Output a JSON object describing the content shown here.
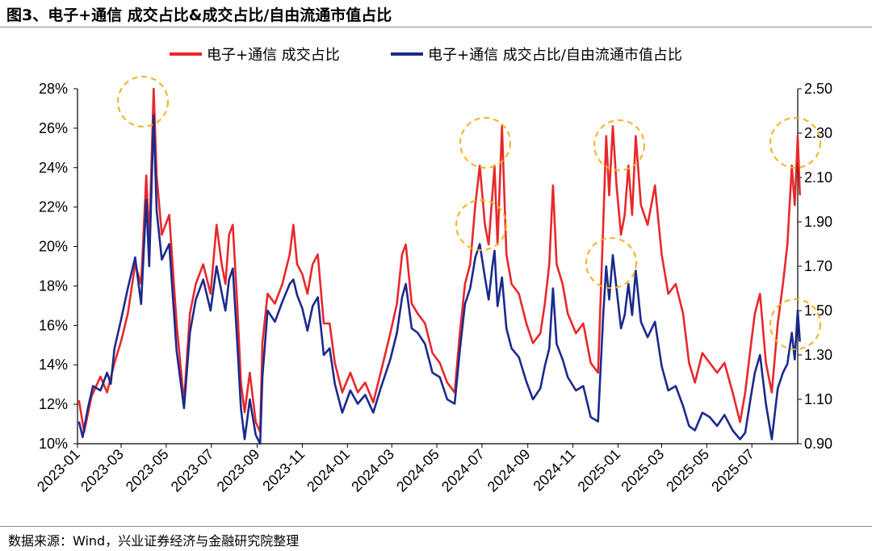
{
  "figure_title": "图3、电子+通信 成交占比&成交占比/自由流通市值占比",
  "source_note": "数据来源：Wind，兴业证券经济与金融研究院整理",
  "colors": {
    "red": "#e8282b",
    "blue": "#1b2a8c",
    "highlight": "#f5b21b",
    "axis": "#000000"
  },
  "chart_data": {
    "type": "line",
    "title": "",
    "xlabel": "",
    "ylabel_left": "",
    "ylabel_right": "",
    "x_ticks": [
      "2023-01",
      "2023-03",
      "2023-05",
      "2023-07",
      "2023-09",
      "2023-11",
      "2024-01",
      "2024-03",
      "2024-05",
      "2024-07",
      "2024-09",
      "2024-11",
      "2025-01",
      "2025-03",
      "2025-05",
      "2025-07"
    ],
    "x_range": [
      "2023-01",
      "2025-09"
    ],
    "y_left_ticks": [
      "10%",
      "12%",
      "14%",
      "16%",
      "18%",
      "20%",
      "22%",
      "24%",
      "26%",
      "28%"
    ],
    "y_left_range": [
      10,
      28
    ],
    "y_right_ticks": [
      "0.90",
      "1.10",
      "1.30",
      "1.50",
      "1.70",
      "1.90",
      "2.10",
      "2.30",
      "2.50"
    ],
    "y_right_range": [
      0.9,
      2.5
    ],
    "legend_position": "top",
    "grid": false,
    "series": [
      {
        "name": "电子+通信 成交占比",
        "axis": "left",
        "color": "#e8282b",
        "points": [
          [
            "2023-01-03",
            12.2
          ],
          [
            "2023-01-10",
            10.6
          ],
          [
            "2023-01-20",
            12.4
          ],
          [
            "2023-02-01",
            13.4
          ],
          [
            "2023-02-10",
            12.6
          ],
          [
            "2023-02-20",
            14.1
          ],
          [
            "2023-03-01",
            15.2
          ],
          [
            "2023-03-10",
            16.6
          ],
          [
            "2023-03-20",
            19.1
          ],
          [
            "2023-03-28",
            18.1
          ],
          [
            "2023-04-04",
            23.6
          ],
          [
            "2023-04-08",
            20.2
          ],
          [
            "2023-04-14",
            28.0
          ],
          [
            "2023-04-18",
            23.6
          ],
          [
            "2023-04-25",
            20.6
          ],
          [
            "2023-05-05",
            21.6
          ],
          [
            "2023-05-15",
            16.1
          ],
          [
            "2023-05-25",
            12.1
          ],
          [
            "2023-06-02",
            16.6
          ],
          [
            "2023-06-10",
            18.1
          ],
          [
            "2023-06-20",
            19.1
          ],
          [
            "2023-06-30",
            17.6
          ],
          [
            "2023-07-08",
            21.1
          ],
          [
            "2023-07-15",
            19.1
          ],
          [
            "2023-07-20",
            18.1
          ],
          [
            "2023-07-25",
            20.6
          ],
          [
            "2023-07-30",
            21.1
          ],
          [
            "2023-08-05",
            17.1
          ],
          [
            "2023-08-10",
            13.1
          ],
          [
            "2023-08-15",
            11.6
          ],
          [
            "2023-08-22",
            13.6
          ],
          [
            "2023-08-30",
            11.1
          ],
          [
            "2023-09-05",
            10.6
          ],
          [
            "2023-09-08",
            15.1
          ],
          [
            "2023-09-15",
            17.6
          ],
          [
            "2023-09-25",
            17.1
          ],
          [
            "2023-10-05",
            18.1
          ],
          [
            "2023-10-15",
            19.6
          ],
          [
            "2023-10-20",
            21.1
          ],
          [
            "2023-10-25",
            19.1
          ],
          [
            "2023-11-01",
            18.6
          ],
          [
            "2023-11-08",
            17.6
          ],
          [
            "2023-11-15",
            19.1
          ],
          [
            "2023-11-22",
            19.6
          ],
          [
            "2023-11-30",
            16.1
          ],
          [
            "2023-12-08",
            16.1
          ],
          [
            "2023-12-15",
            14.1
          ],
          [
            "2023-12-25",
            12.6
          ],
          [
            "2024-01-05",
            13.6
          ],
          [
            "2024-01-15",
            12.6
          ],
          [
            "2024-01-25",
            13.1
          ],
          [
            "2024-02-05",
            12.1
          ],
          [
            "2024-02-15",
            13.6
          ],
          [
            "2024-02-28",
            15.6
          ],
          [
            "2024-03-08",
            17.1
          ],
          [
            "2024-03-15",
            19.6
          ],
          [
            "2024-03-20",
            20.1
          ],
          [
            "2024-03-28",
            17.1
          ],
          [
            "2024-04-05",
            16.6
          ],
          [
            "2024-04-15",
            16.1
          ],
          [
            "2024-04-25",
            14.6
          ],
          [
            "2024-05-05",
            14.1
          ],
          [
            "2024-05-15",
            13.1
          ],
          [
            "2024-05-25",
            12.6
          ],
          [
            "2024-06-01",
            15.6
          ],
          [
            "2024-06-08",
            18.1
          ],
          [
            "2024-06-15",
            19.1
          ],
          [
            "2024-06-22",
            22.1
          ],
          [
            "2024-06-28",
            24.1
          ],
          [
            "2024-07-05",
            21.1
          ],
          [
            "2024-07-10",
            20.1
          ],
          [
            "2024-07-15",
            22.6
          ],
          [
            "2024-07-18",
            24.1
          ],
          [
            "2024-07-22",
            20.1
          ],
          [
            "2024-07-28",
            26.1
          ],
          [
            "2024-08-03",
            19.6
          ],
          [
            "2024-08-10",
            18.1
          ],
          [
            "2024-08-20",
            17.6
          ],
          [
            "2024-08-30",
            16.1
          ],
          [
            "2024-09-08",
            15.1
          ],
          [
            "2024-09-18",
            15.6
          ],
          [
            "2024-09-24",
            17.1
          ],
          [
            "2024-09-30",
            19.1
          ],
          [
            "2024-10-05",
            23.1
          ],
          [
            "2024-10-10",
            19.1
          ],
          [
            "2024-10-18",
            18.1
          ],
          [
            "2024-10-25",
            16.6
          ],
          [
            "2024-11-05",
            15.6
          ],
          [
            "2024-11-15",
            16.1
          ],
          [
            "2024-11-25",
            14.1
          ],
          [
            "2024-12-05",
            13.6
          ],
          [
            "2024-12-12",
            21.1
          ],
          [
            "2024-12-16",
            25.6
          ],
          [
            "2024-12-20",
            22.6
          ],
          [
            "2024-12-25",
            26.1
          ],
          [
            "2024-12-30",
            23.1
          ],
          [
            "2025-01-05",
            20.6
          ],
          [
            "2025-01-10",
            21.6
          ],
          [
            "2025-01-15",
            24.1
          ],
          [
            "2025-01-20",
            21.6
          ],
          [
            "2025-01-25",
            25.6
          ],
          [
            "2025-02-01",
            22.1
          ],
          [
            "2025-02-10",
            21.1
          ],
          [
            "2025-02-20",
            23.1
          ],
          [
            "2025-03-01",
            19.6
          ],
          [
            "2025-03-10",
            17.6
          ],
          [
            "2025-03-20",
            18.1
          ],
          [
            "2025-03-30",
            16.6
          ],
          [
            "2025-04-07",
            14.1
          ],
          [
            "2025-04-15",
            13.1
          ],
          [
            "2025-04-25",
            14.6
          ],
          [
            "2025-05-05",
            14.1
          ],
          [
            "2025-05-15",
            13.6
          ],
          [
            "2025-05-25",
            14.1
          ],
          [
            "2025-06-05",
            12.6
          ],
          [
            "2025-06-15",
            11.1
          ],
          [
            "2025-06-22",
            12.6
          ],
          [
            "2025-06-30",
            15.1
          ],
          [
            "2025-07-05",
            16.6
          ],
          [
            "2025-07-12",
            17.6
          ],
          [
            "2025-07-20",
            14.1
          ],
          [
            "2025-07-28",
            12.6
          ],
          [
            "2025-08-05",
            16.1
          ],
          [
            "2025-08-12",
            18.1
          ],
          [
            "2025-08-18",
            20.1
          ],
          [
            "2025-08-24",
            24.1
          ],
          [
            "2025-08-28",
            22.1
          ],
          [
            "2025-09-01",
            25.6
          ],
          [
            "2025-09-04",
            22.6
          ]
        ]
      },
      {
        "name": "电子+通信 成交占比/自由流通市值占比",
        "axis": "right",
        "color": "#1b2a8c",
        "points": [
          [
            "2023-01-03",
            1.0
          ],
          [
            "2023-01-08",
            0.93
          ],
          [
            "2023-01-15",
            1.06
          ],
          [
            "2023-01-22",
            1.16
          ],
          [
            "2023-02-01",
            1.14
          ],
          [
            "2023-02-10",
            1.22
          ],
          [
            "2023-02-15",
            1.17
          ],
          [
            "2023-02-20",
            1.33
          ],
          [
            "2023-03-01",
            1.46
          ],
          [
            "2023-03-10",
            1.6
          ],
          [
            "2023-03-20",
            1.74
          ],
          [
            "2023-03-28",
            1.53
          ],
          [
            "2023-04-04",
            2.0
          ],
          [
            "2023-04-08",
            1.7
          ],
          [
            "2023-04-14",
            2.38
          ],
          [
            "2023-04-18",
            1.95
          ],
          [
            "2023-04-25",
            1.73
          ],
          [
            "2023-05-05",
            1.8
          ],
          [
            "2023-05-15",
            1.32
          ],
          [
            "2023-05-25",
            1.06
          ],
          [
            "2023-06-02",
            1.4
          ],
          [
            "2023-06-10",
            1.55
          ],
          [
            "2023-06-20",
            1.64
          ],
          [
            "2023-06-30",
            1.5
          ],
          [
            "2023-07-08",
            1.7
          ],
          [
            "2023-07-15",
            1.58
          ],
          [
            "2023-07-20",
            1.5
          ],
          [
            "2023-07-25",
            1.64
          ],
          [
            "2023-07-30",
            1.69
          ],
          [
            "2023-08-05",
            1.36
          ],
          [
            "2023-08-10",
            1.06
          ],
          [
            "2023-08-15",
            0.92
          ],
          [
            "2023-08-22",
            1.1
          ],
          [
            "2023-08-30",
            0.94
          ],
          [
            "2023-09-05",
            0.9
          ],
          [
            "2023-09-08",
            1.2
          ],
          [
            "2023-09-15",
            1.5
          ],
          [
            "2023-09-25",
            1.45
          ],
          [
            "2023-10-05",
            1.54
          ],
          [
            "2023-10-15",
            1.62
          ],
          [
            "2023-10-20",
            1.64
          ],
          [
            "2023-10-25",
            1.57
          ],
          [
            "2023-11-01",
            1.51
          ],
          [
            "2023-11-08",
            1.41
          ],
          [
            "2023-11-15",
            1.52
          ],
          [
            "2023-11-22",
            1.56
          ],
          [
            "2023-11-30",
            1.3
          ],
          [
            "2023-12-08",
            1.33
          ],
          [
            "2023-12-15",
            1.17
          ],
          [
            "2023-12-25",
            1.04
          ],
          [
            "2024-01-05",
            1.14
          ],
          [
            "2024-01-15",
            1.08
          ],
          [
            "2024-01-25",
            1.12
          ],
          [
            "2024-02-05",
            1.04
          ],
          [
            "2024-02-15",
            1.15
          ],
          [
            "2024-02-28",
            1.28
          ],
          [
            "2024-03-08",
            1.4
          ],
          [
            "2024-03-15",
            1.56
          ],
          [
            "2024-03-20",
            1.62
          ],
          [
            "2024-03-28",
            1.42
          ],
          [
            "2024-04-05",
            1.4
          ],
          [
            "2024-04-15",
            1.35
          ],
          [
            "2024-04-25",
            1.22
          ],
          [
            "2024-05-05",
            1.2
          ],
          [
            "2024-05-15",
            1.1
          ],
          [
            "2024-05-25",
            1.08
          ],
          [
            "2024-06-01",
            1.32
          ],
          [
            "2024-06-08",
            1.53
          ],
          [
            "2024-06-15",
            1.6
          ],
          [
            "2024-06-22",
            1.74
          ],
          [
            "2024-06-28",
            1.8
          ],
          [
            "2024-07-05",
            1.65
          ],
          [
            "2024-07-10",
            1.55
          ],
          [
            "2024-07-15",
            1.7
          ],
          [
            "2024-07-18",
            1.77
          ],
          [
            "2024-07-22",
            1.52
          ],
          [
            "2024-07-28",
            1.65
          ],
          [
            "2024-08-03",
            1.42
          ],
          [
            "2024-08-10",
            1.33
          ],
          [
            "2024-08-20",
            1.29
          ],
          [
            "2024-08-30",
            1.18
          ],
          [
            "2024-09-08",
            1.1
          ],
          [
            "2024-09-18",
            1.15
          ],
          [
            "2024-09-24",
            1.25
          ],
          [
            "2024-09-30",
            1.33
          ],
          [
            "2024-10-05",
            1.6
          ],
          [
            "2024-10-10",
            1.35
          ],
          [
            "2024-10-18",
            1.28
          ],
          [
            "2024-10-25",
            1.2
          ],
          [
            "2024-11-05",
            1.14
          ],
          [
            "2024-11-15",
            1.16
          ],
          [
            "2024-11-25",
            1.02
          ],
          [
            "2024-12-05",
            1.0
          ],
          [
            "2024-12-12",
            1.48
          ],
          [
            "2024-12-16",
            1.7
          ],
          [
            "2024-12-20",
            1.55
          ],
          [
            "2024-12-25",
            1.75
          ],
          [
            "2024-12-30",
            1.6
          ],
          [
            "2025-01-05",
            1.42
          ],
          [
            "2025-01-10",
            1.48
          ],
          [
            "2025-01-15",
            1.62
          ],
          [
            "2025-01-20",
            1.48
          ],
          [
            "2025-01-25",
            1.68
          ],
          [
            "2025-02-01",
            1.45
          ],
          [
            "2025-02-10",
            1.38
          ],
          [
            "2025-02-20",
            1.45
          ],
          [
            "2025-03-01",
            1.25
          ],
          [
            "2025-03-10",
            1.14
          ],
          [
            "2025-03-20",
            1.16
          ],
          [
            "2025-03-30",
            1.07
          ],
          [
            "2025-04-07",
            0.98
          ],
          [
            "2025-04-15",
            0.96
          ],
          [
            "2025-04-25",
            1.04
          ],
          [
            "2025-05-05",
            1.02
          ],
          [
            "2025-05-15",
            0.98
          ],
          [
            "2025-05-25",
            1.03
          ],
          [
            "2025-06-05",
            0.96
          ],
          [
            "2025-06-15",
            0.92
          ],
          [
            "2025-06-22",
            0.95
          ],
          [
            "2025-06-30",
            1.12
          ],
          [
            "2025-07-05",
            1.22
          ],
          [
            "2025-07-12",
            1.3
          ],
          [
            "2025-07-20",
            1.08
          ],
          [
            "2025-07-28",
            0.92
          ],
          [
            "2025-08-05",
            1.15
          ],
          [
            "2025-08-12",
            1.22
          ],
          [
            "2025-08-18",
            1.26
          ],
          [
            "2025-08-24",
            1.4
          ],
          [
            "2025-08-28",
            1.28
          ],
          [
            "2025-09-01",
            1.5
          ],
          [
            "2025-09-04",
            1.36
          ]
        ]
      }
    ],
    "annotations": [
      {
        "shape": "dashed-circle",
        "color": "#f5b21b",
        "at": "2023-04 peak"
      },
      {
        "shape": "dashed-circle",
        "color": "#f5b21b",
        "at": "2024-07 peak"
      },
      {
        "shape": "dashed-circle",
        "color": "#f5b21b",
        "at": "2024-07 ratio peak"
      },
      {
        "shape": "dashed-circle",
        "color": "#f5b21b",
        "at": "2025-01 peak"
      },
      {
        "shape": "dashed-circle",
        "color": "#f5b21b",
        "at": "2025-01 ratio peak"
      },
      {
        "shape": "dashed-circle",
        "color": "#f5b21b",
        "at": "2025-09 peak"
      },
      {
        "shape": "dashed-circle",
        "color": "#f5b21b",
        "at": "2025-09 ratio peak"
      }
    ]
  }
}
